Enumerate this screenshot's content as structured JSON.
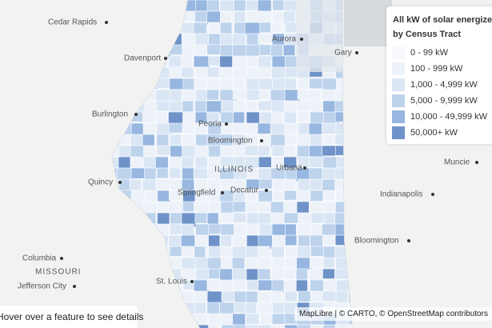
{
  "legend": {
    "title": [
      "All kW of solar energized",
      "by Census Tract"
    ],
    "items": [
      {
        "label": "0 - 99 kW",
        "color": "#f7f9fc"
      },
      {
        "label": "100 - 999 kW",
        "color": "#edf2f9"
      },
      {
        "label": "1,000 - 4,999 kW",
        "color": "#dae6f4"
      },
      {
        "label": "5,000 - 9,999 kW",
        "color": "#bdd3ec"
      },
      {
        "label": "10,000 - 49,999 kW",
        "color": "#97b7e0"
      },
      {
        "label": "50,000+ kW",
        "color": "#6f93c9"
      }
    ]
  },
  "places": [
    {
      "label": "Cedar Rapids"
    },
    {
      "label": "Davenport"
    },
    {
      "label": "Burlington"
    },
    {
      "label": "Quincy"
    },
    {
      "label": "Columbia"
    },
    {
      "label": "Jefferson City"
    },
    {
      "label": "St. Louis"
    },
    {
      "label": "Peoria"
    },
    {
      "label": "Bloomington"
    },
    {
      "label": "Springfield"
    },
    {
      "label": "Decatur"
    },
    {
      "label": "Urbana"
    },
    {
      "label": "Aurora"
    },
    {
      "label": "Gary"
    },
    {
      "label": "Muncie"
    },
    {
      "label": "Indianapolis"
    },
    {
      "label": "Bloomington"
    }
  ],
  "states": [
    {
      "label": "ILLINOIS"
    },
    {
      "label": "MISSOURI"
    }
  ],
  "info": "Hover over a feature to see details",
  "attribution": "MapLibre | © CARTO, © OpenStreetMap contributors"
}
